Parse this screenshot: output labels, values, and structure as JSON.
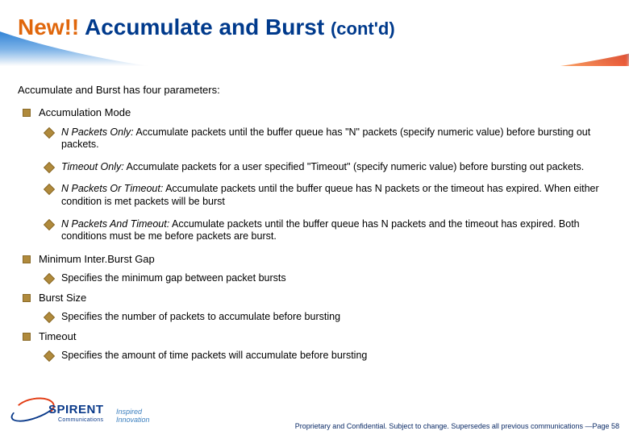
{
  "title": {
    "new": "New!!",
    "main": "Accumulate and Burst",
    "cont": "(cont'd)"
  },
  "intro": "Accumulate and Burst has four parameters:",
  "params": [
    {
      "name": "Accumulation Mode",
      "items": [
        {
          "em": "N Packets Only:",
          "rest": " Accumulate packets until the buffer queue has \"N\" packets (specify numeric value) before bursting out packets."
        },
        {
          "em": "Timeout Only:",
          "rest": " Accumulate packets for a user specified \"Timeout\" (specify numeric value) before bursting out packets."
        },
        {
          "em": "N Packets Or Timeout:",
          "rest": " Accumulate packets until the buffer queue has N packets or the timeout has expired. When either condition is met packets will be burst"
        },
        {
          "em": "N Packets And Timeout:",
          "rest": " Accumulate packets until the buffer queue has N packets and the timeout has expired. Both conditions must be me before packets are burst."
        }
      ]
    },
    {
      "name": "Minimum Inter.Burst Gap",
      "items": [
        {
          "em": "",
          "rest": "Specifies the minimum gap between packet bursts"
        }
      ]
    },
    {
      "name": "Burst Size",
      "items": [
        {
          "em": "",
          "rest": "Specifies the number of packets to accumulate before bursting"
        }
      ]
    },
    {
      "name": "Timeout",
      "items": [
        {
          "em": "",
          "rest": "Specifies the amount of time packets will accumulate before bursting"
        }
      ]
    }
  ],
  "logo": {
    "brand": "SPIRENT",
    "sub": "Communications",
    "tagline": "Inspired Innovation"
  },
  "footer": "Proprietary and Confidential.  Subject to change. Supersedes all previous communications —Page 58",
  "colors": {
    "title": "#003a8c",
    "accent": "#e0670c",
    "bullet": "#b08a3c",
    "footer": "#0a2a66",
    "band_top": "#1b5fb8",
    "band_mid": "#2a7fd4",
    "orange_flare": "#e23b12"
  },
  "typography": {
    "title_size": 28,
    "cont_size": 22,
    "body_size": 13,
    "sub_size": 12.5,
    "footer_size": 9
  }
}
